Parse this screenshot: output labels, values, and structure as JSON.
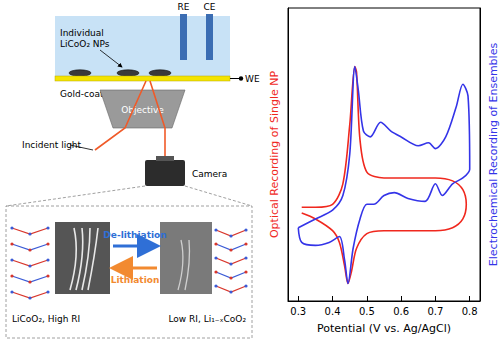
{
  "chart_data": {
    "type": "line",
    "xlabel": "Potential (V vs. Ag/AgCl)",
    "ylabel": "Optical Recording of Single NP",
    "y2label": "Electrochemical Recording of Ensembles",
    "xlim": [
      0.27,
      0.83
    ],
    "xticks": [
      0.3,
      0.4,
      0.5,
      0.6,
      0.7,
      0.8
    ],
    "ylim": [
      0,
      100
    ],
    "y2lim": [
      0,
      100
    ],
    "grid": false,
    "tick_labels": "x",
    "series": [
      {
        "color": "#f0281e",
        "axis": "y",
        "x": [
          0.31,
          0.35,
          0.4,
          0.43,
          0.45,
          0.465,
          0.47,
          0.48,
          0.5,
          0.55,
          0.6,
          0.65,
          0.7,
          0.75,
          0.78,
          0.79,
          0.78,
          0.75,
          0.7,
          0.65,
          0.6,
          0.55,
          0.5,
          0.47,
          0.455,
          0.445,
          0.435,
          0.42,
          0.4,
          0.35,
          0.31
        ],
        "values": [
          32,
          32,
          33,
          40,
          60,
          80,
          78,
          55,
          44,
          42,
          42,
          42,
          42,
          41,
          38,
          33,
          28,
          25,
          24,
          24,
          24,
          24,
          23,
          18,
          10,
          6,
          12,
          20,
          24,
          28,
          30
        ]
      },
      {
        "color": "#3434e8",
        "axis": "y2",
        "x": [
          0.3,
          0.35,
          0.4,
          0.43,
          0.45,
          0.465,
          0.475,
          0.49,
          0.51,
          0.54,
          0.57,
          0.6,
          0.65,
          0.68,
          0.7,
          0.73,
          0.76,
          0.78,
          0.795,
          0.8,
          0.78,
          0.75,
          0.72,
          0.7,
          0.67,
          0.62,
          0.58,
          0.55,
          0.52,
          0.5,
          0.48,
          0.46,
          0.445,
          0.435,
          0.42,
          0.39,
          0.35,
          0.31,
          0.3
        ],
        "values": [
          25,
          28,
          31,
          36,
          50,
          80,
          72,
          58,
          56,
          61,
          58,
          56,
          53,
          54,
          52,
          56,
          66,
          74,
          70,
          45,
          42,
          40,
          36,
          40,
          34,
          35,
          37,
          36,
          33,
          33,
          28,
          18,
          6,
          14,
          22,
          20,
          19,
          20,
          25
        ]
      }
    ]
  },
  "diagram": {
    "electrodes": [
      "RE",
      "CE"
    ],
    "nanoparticles_label": [
      "Individual",
      "LiCoO₂ NPs"
    ],
    "working_electrode": "WE",
    "substrate": "Gold-coated coverslip",
    "objective": "Objective",
    "light": "Incident light",
    "camera": "Camera",
    "inset": {
      "forward": "De-lithiation",
      "backward": "Lithiation",
      "left_caption": "LiCoO₂, High RI",
      "right_caption": "Low RI, Li₁₋ₓCoO₂"
    }
  }
}
